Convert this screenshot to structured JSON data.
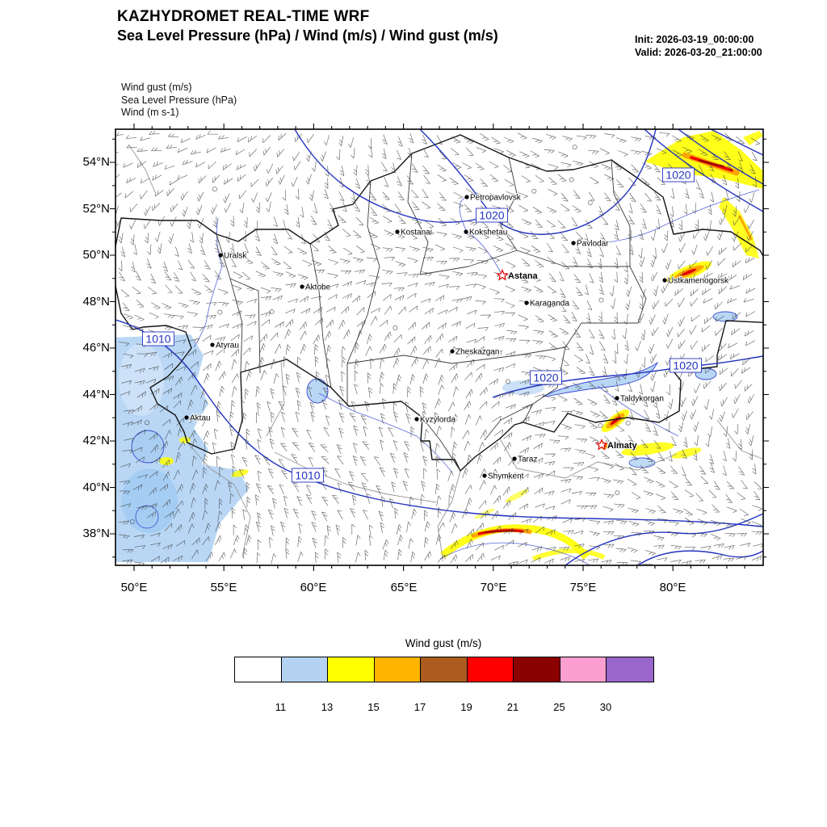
{
  "header": {
    "title": "KAZHYDROMET REAL-TIME WRF",
    "subtitle": "Sea Level Pressure  (hPa) / Wind  (m/s) / Wind gust  (m/s)",
    "init_line": "Init: 2026-03-19_00:00:00",
    "valid_line": "Valid: 2026-03-20_21:00:00"
  },
  "field_list": {
    "line1": "Wind gust   (m/s)",
    "line2": "Sea Level Pressure   (hPa)",
    "line3": "Wind   (m s-1)"
  },
  "axes": {
    "lat_ticks": [
      "54°N",
      "52°N",
      "50°N",
      "48°N",
      "46°N",
      "44°N",
      "42°N",
      "40°N",
      "38°N"
    ],
    "lon_ticks": [
      "50°E",
      "55°E",
      "60°E",
      "65°E",
      "70°E",
      "75°E",
      "80°E"
    ]
  },
  "cities": [
    {
      "name": "Petropavlovsk",
      "capital": false
    },
    {
      "name": "Kostanai",
      "capital": false
    },
    {
      "name": "Kokshetau",
      "capital": false
    },
    {
      "name": "Pavlodar",
      "capital": false
    },
    {
      "name": "Uralsk",
      "capital": false
    },
    {
      "name": "Astana",
      "capital": true
    },
    {
      "name": "Aktobe",
      "capital": false
    },
    {
      "name": "Ustkamenogorsk",
      "capital": false
    },
    {
      "name": "Karaganda",
      "capital": false
    },
    {
      "name": "Atyrau",
      "capital": false
    },
    {
      "name": "Zheskazgan",
      "capital": false
    },
    {
      "name": "Taldykorgan",
      "capital": false
    },
    {
      "name": "Aktau",
      "capital": false
    },
    {
      "name": "Kyzylorda",
      "capital": false
    },
    {
      "name": "Almaty",
      "capital": true
    },
    {
      "name": "Taraz",
      "capital": false
    },
    {
      "name": "Shymkent",
      "capital": false
    }
  ],
  "pressure_labels": [
    {
      "value": "1020"
    },
    {
      "value": "1020"
    },
    {
      "value": "1010"
    },
    {
      "value": "1020"
    },
    {
      "value": "1020"
    },
    {
      "value": "1010"
    }
  ],
  "colorbar": {
    "title": "Wind gust (m/s)",
    "colors": [
      "#ffffff",
      "#b4d2f1",
      "#ffff00",
      "#ffb400",
      "#ab5c1e",
      "#ff0000",
      "#8b0000",
      "#fb9fd1",
      "#9966cc"
    ],
    "ticks": [
      "11",
      "13",
      "15",
      "17",
      "19",
      "21",
      "25",
      "30"
    ]
  }
}
